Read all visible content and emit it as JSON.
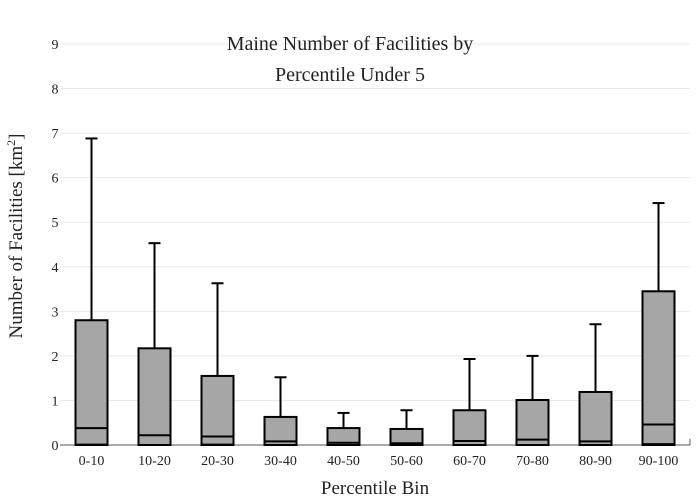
{
  "chart_data": {
    "type": "box",
    "title_lines": [
      "Maine Number of Facilities by",
      "Percentile Under 5"
    ],
    "xlabel": "Percentile Bin",
    "ylabel_main": "Number of Facilities  [km",
    "ylabel_sup": "2",
    "ylabel_end": "]",
    "ylim": [
      0,
      9
    ],
    "yticks": [
      "0",
      "1",
      "2",
      "3",
      "4",
      "5",
      "6",
      "7",
      "8",
      "9"
    ],
    "grid": true,
    "box_color": "#a6a6a6",
    "categories": [
      "0-10",
      "10-20",
      "20-30",
      "30-40",
      "40-50",
      "50-60",
      "60-70",
      "70-80",
      "80-90",
      "90-100"
    ],
    "boxes": [
      {
        "min": 0,
        "q1": 0.02,
        "median": 0.38,
        "q3": 2.8,
        "max": 6.88
      },
      {
        "min": 0,
        "q1": 0.01,
        "median": 0.22,
        "q3": 2.17,
        "max": 4.53
      },
      {
        "min": 0,
        "q1": 0.02,
        "median": 0.19,
        "q3": 1.55,
        "max": 3.63
      },
      {
        "min": 0,
        "q1": 0.0,
        "median": 0.08,
        "q3": 0.63,
        "max": 1.52
      },
      {
        "min": 0,
        "q1": 0.0,
        "median": 0.05,
        "q3": 0.38,
        "max": 0.72
      },
      {
        "min": 0,
        "q1": 0.0,
        "median": 0.04,
        "q3": 0.36,
        "max": 0.78
      },
      {
        "min": 0,
        "q1": 0.0,
        "median": 0.09,
        "q3": 0.78,
        "max": 1.93
      },
      {
        "min": 0,
        "q1": 0.01,
        "median": 0.12,
        "q3": 1.01,
        "max": 2.0
      },
      {
        "min": 0,
        "q1": 0.01,
        "median": 0.08,
        "q3": 1.19,
        "max": 2.71
      },
      {
        "min": 0,
        "q1": 0.03,
        "median": 0.46,
        "q3": 3.45,
        "max": 5.43
      }
    ]
  }
}
